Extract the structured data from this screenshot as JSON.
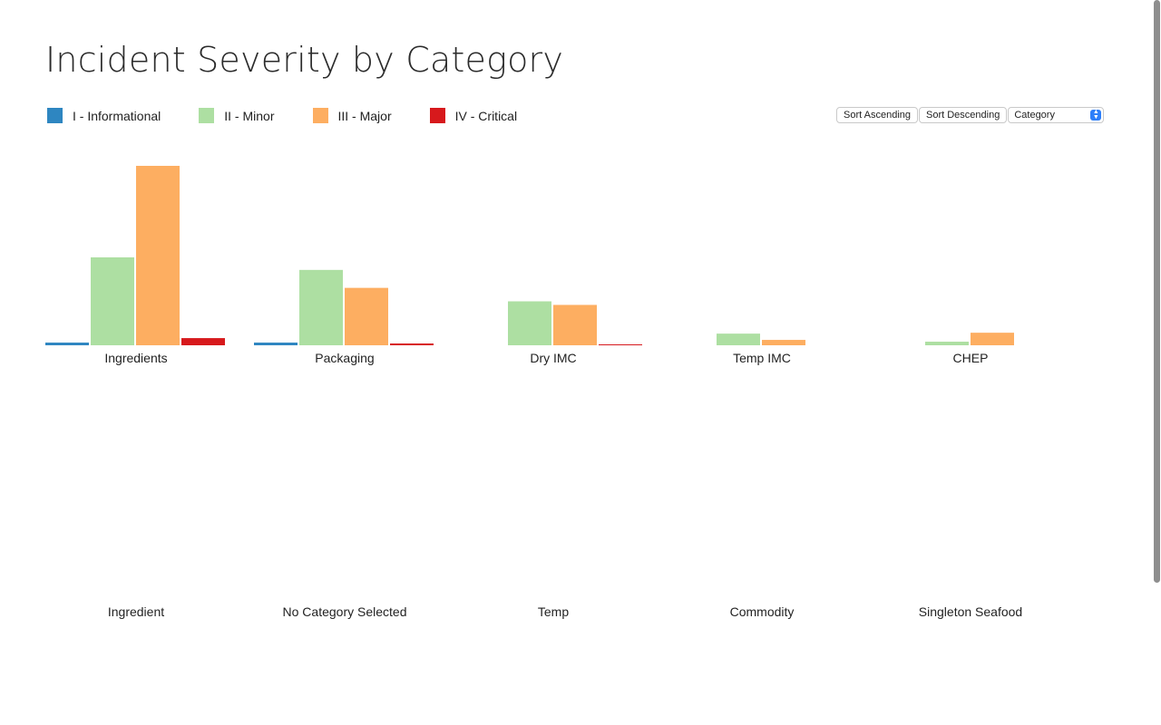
{
  "title": "Incident Severity by Category",
  "controls": {
    "sort_ascending": "Sort Ascending",
    "sort_descending": "Sort Descending",
    "sort_field": "Category"
  },
  "icons": {
    "select_arrow": "chevron-up-down-icon"
  },
  "chart_data": {
    "type": "bar",
    "legend_placement": "top-left",
    "grid": false,
    "ylim": [
      0,
      100
    ],
    "series": [
      {
        "name": "I - Informational",
        "color": "#2e86c1"
      },
      {
        "name": "II - Minor",
        "color": "#addfa2"
      },
      {
        "name": "III - Major",
        "color": "#fdae61"
      },
      {
        "name": "IV - Critical",
        "color": "#d7191c"
      }
    ],
    "categories": [
      "Ingredients",
      "Packaging",
      "Dry IMC",
      "Temp IMC",
      "CHEP",
      "Ingredient",
      "No Category Selected",
      "Temp",
      "Commodity",
      "Singleton Seafood"
    ],
    "values": [
      [
        1.5,
        49,
        100,
        4
      ],
      [
        1.5,
        42,
        32,
        1
      ],
      [
        0,
        24.5,
        22.5,
        0.5
      ],
      [
        0,
        6.5,
        3,
        0
      ],
      [
        0,
        2,
        7,
        0
      ],
      [
        0,
        0,
        0,
        0
      ],
      [
        0,
        0,
        0,
        0
      ],
      [
        0,
        0,
        0,
        0
      ],
      [
        0,
        0,
        0,
        0
      ],
      [
        0,
        0,
        0,
        0
      ]
    ]
  }
}
